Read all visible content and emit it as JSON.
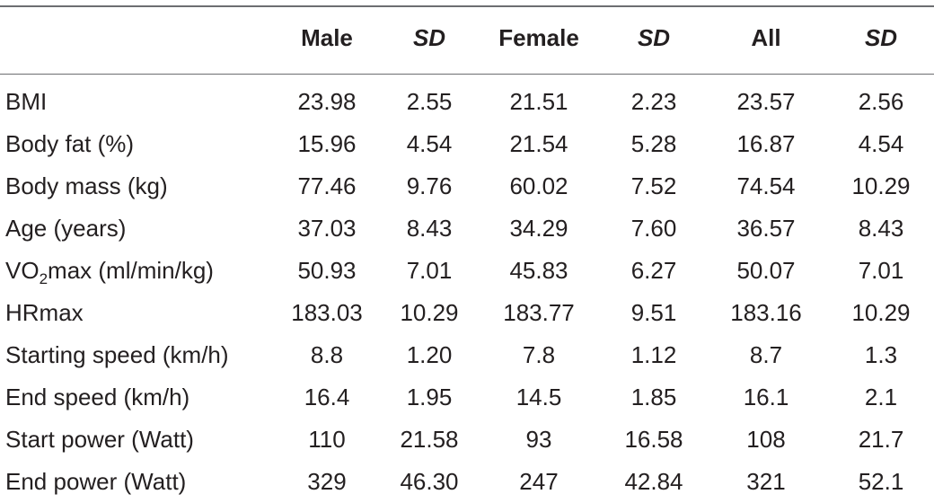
{
  "header": {
    "label": "",
    "male": "Male",
    "male_sd": "SD",
    "female": "Female",
    "female_sd": "SD",
    "all": "All",
    "all_sd": "SD"
  },
  "rows": [
    {
      "label": "BMI",
      "male": "23.98",
      "male_sd": "2.55",
      "female": "21.51",
      "female_sd": "2.23",
      "all": "23.57",
      "all_sd": "2.56"
    },
    {
      "label": "Body fat (%)",
      "male": "15.96",
      "male_sd": "4.54",
      "female": "21.54",
      "female_sd": "5.28",
      "all": "16.87",
      "all_sd": "4.54"
    },
    {
      "label": "Body mass (kg)",
      "male": "77.46",
      "male_sd": "9.76",
      "female": "60.02",
      "female_sd": "7.52",
      "all": "74.54",
      "all_sd": "10.29"
    },
    {
      "label": "Age (years)",
      "male": "37.03",
      "male_sd": "8.43",
      "female": "34.29",
      "female_sd": "7.60",
      "all": "36.57",
      "all_sd": "8.43"
    },
    {
      "label_pre": "VO",
      "label_sub": "2",
      "label_post": "max (ml/min/kg)",
      "male": "50.93",
      "male_sd": "7.01",
      "female": "45.83",
      "female_sd": "6.27",
      "all": "50.07",
      "all_sd": "7.01"
    },
    {
      "label": "HRmax",
      "male": "183.03",
      "male_sd": "10.29",
      "female": "183.77",
      "female_sd": "9.51",
      "all": "183.16",
      "all_sd": "10.29"
    },
    {
      "label": "Starting speed (km/h)",
      "male": "8.8",
      "male_sd": "1.20",
      "female": "7.8",
      "female_sd": "1.12",
      "all": "8.7",
      "all_sd": "1.3"
    },
    {
      "label": "End speed (km/h)",
      "male": "16.4",
      "male_sd": "1.95",
      "female": "14.5",
      "female_sd": "1.85",
      "all": "16.1",
      "all_sd": "2.1"
    },
    {
      "label": "Start power (Watt)",
      "male": "110",
      "male_sd": "21.58",
      "female": "93",
      "female_sd": "16.58",
      "all": "108",
      "all_sd": "21.7"
    },
    {
      "label": "End power (Watt)",
      "male": "329",
      "male_sd": "46.30",
      "female": "247",
      "female_sd": "42.84",
      "all": "321",
      "all_sd": "52.1"
    }
  ]
}
